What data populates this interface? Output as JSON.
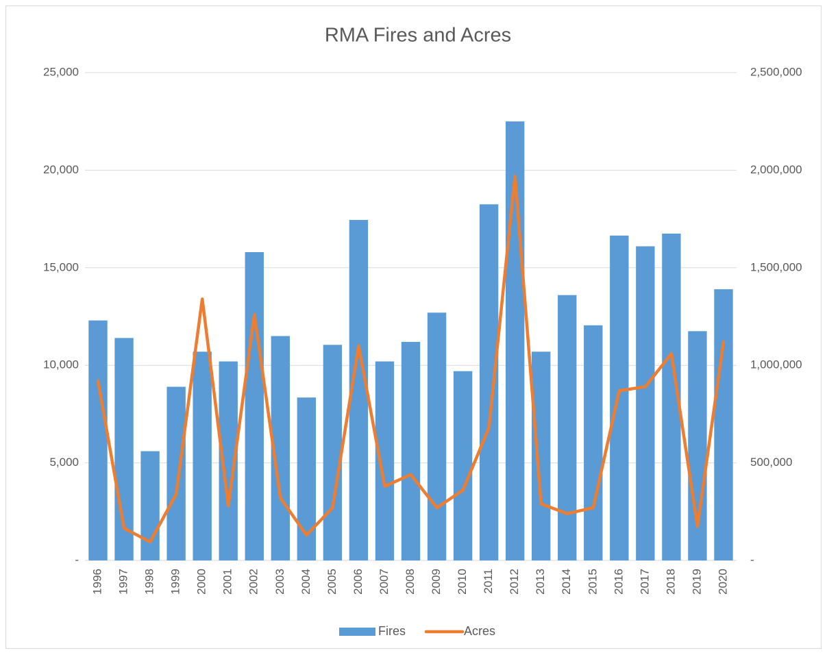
{
  "chart_data": {
    "type": "combo",
    "title": "RMA Fires and Acres",
    "categories": [
      "1996",
      "1997",
      "1998",
      "1999",
      "2000",
      "2001",
      "2002",
      "2003",
      "2004",
      "2005",
      "2006",
      "2007",
      "2008",
      "2009",
      "2010",
      "2011",
      "2012",
      "2013",
      "2014",
      "2015",
      "2016",
      "2017",
      "2018",
      "2019",
      "2020"
    ],
    "series": [
      {
        "name": "Fires",
        "type": "bar",
        "color": "#5b9bd5",
        "values": [
          12300,
          11400,
          5600,
          8900,
          10700,
          10200,
          15800,
          11500,
          8350,
          11050,
          17450,
          10200,
          11200,
          12700,
          9700,
          18250,
          22500,
          10700,
          13600,
          12050,
          16650,
          16100,
          16750,
          11750,
          13900
        ]
      },
      {
        "name": "Acres",
        "type": "line",
        "axis": "y2",
        "color": "#ed7d31",
        "values": [
          920000,
          165000,
          95000,
          340000,
          1340000,
          280000,
          1260000,
          320000,
          130000,
          270000,
          1100000,
          380000,
          440000,
          270000,
          360000,
          680000,
          1970000,
          290000,
          240000,
          270000,
          870000,
          890000,
          1060000,
          175000,
          1120000
        ]
      }
    ],
    "ylim": [
      0,
      25000
    ],
    "yticks": [
      {
        "value": 0,
        "label": "-"
      },
      {
        "value": 5000,
        "label": "5,000"
      },
      {
        "value": 10000,
        "label": "10,000"
      },
      {
        "value": 15000,
        "label": "15,000"
      },
      {
        "value": 20000,
        "label": "20,000"
      },
      {
        "value": 25000,
        "label": "25,000"
      }
    ],
    "y2lim": [
      0,
      2500000
    ],
    "y2ticks": [
      {
        "value": 0,
        "label": "-"
      },
      {
        "value": 500000,
        "label": "500,000"
      },
      {
        "value": 1000000,
        "label": "1,000,000"
      },
      {
        "value": 1500000,
        "label": "1,500,000"
      },
      {
        "value": 2000000,
        "label": "2,000,000"
      },
      {
        "value": 2500000,
        "label": "2,500,000"
      }
    ],
    "grid": true,
    "legend": "bottom"
  }
}
